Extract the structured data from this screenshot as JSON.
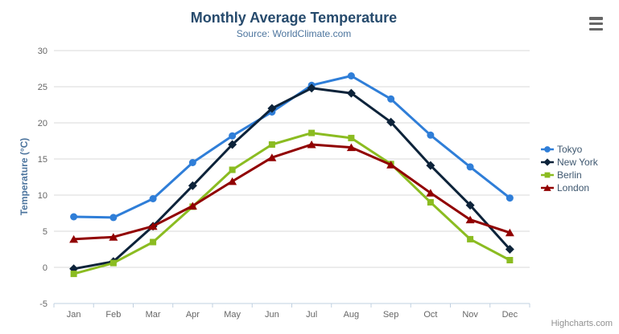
{
  "header": {
    "title": "Monthly Average Temperature",
    "subtitle": "Source: WorldClimate.com"
  },
  "toolbar": {
    "context_menu_icon": "hamburger-menu"
  },
  "credit": "Highcharts.com",
  "theme": {
    "background": "#ffffff",
    "title_color": "#274b6d",
    "subtitle_color": "#4d759e",
    "y_axis_title_color": "#4d759e",
    "axis_label_color": "#666666",
    "axis_line_color": "#c0d0e0",
    "grid_color": "#d8d8d8",
    "legend_text_color": "#3e576f",
    "credit_color": "#909090",
    "menu_icon_color": "#666666"
  },
  "chart_data": {
    "type": "line",
    "title": "Monthly Average Temperature",
    "subtitle": "Source: WorldClimate.com",
    "categories": [
      "Jan",
      "Feb",
      "Mar",
      "Apr",
      "May",
      "Jun",
      "Jul",
      "Aug",
      "Sep",
      "Oct",
      "Nov",
      "Dec"
    ],
    "xlabel": "",
    "ylabel": "Temperature (°C)",
    "ylim": [
      -5,
      30
    ],
    "yticks": [
      -5,
      0,
      5,
      10,
      15,
      20,
      25,
      30
    ],
    "grid": true,
    "legend_position": "right",
    "series": [
      {
        "name": "Tokyo",
        "color": "#2f7ed8",
        "marker": "circle",
        "values": [
          7.0,
          6.9,
          9.5,
          14.5,
          18.2,
          21.5,
          25.2,
          26.5,
          23.3,
          18.3,
          13.9,
          9.6
        ]
      },
      {
        "name": "New York",
        "color": "#0d233a",
        "marker": "diamond",
        "values": [
          -0.2,
          0.8,
          5.7,
          11.3,
          17.0,
          22.0,
          24.8,
          24.1,
          20.1,
          14.1,
          8.6,
          2.5
        ]
      },
      {
        "name": "Berlin",
        "color": "#8bbc21",
        "marker": "square",
        "values": [
          -0.9,
          0.6,
          3.5,
          8.4,
          13.5,
          17.0,
          18.6,
          17.9,
          14.3,
          9.0,
          3.9,
          1.0
        ]
      },
      {
        "name": "London",
        "color": "#910000",
        "marker": "triangle",
        "values": [
          3.9,
          4.2,
          5.7,
          8.5,
          11.9,
          15.2,
          17.0,
          16.6,
          14.2,
          10.3,
          6.6,
          4.8
        ]
      }
    ]
  }
}
